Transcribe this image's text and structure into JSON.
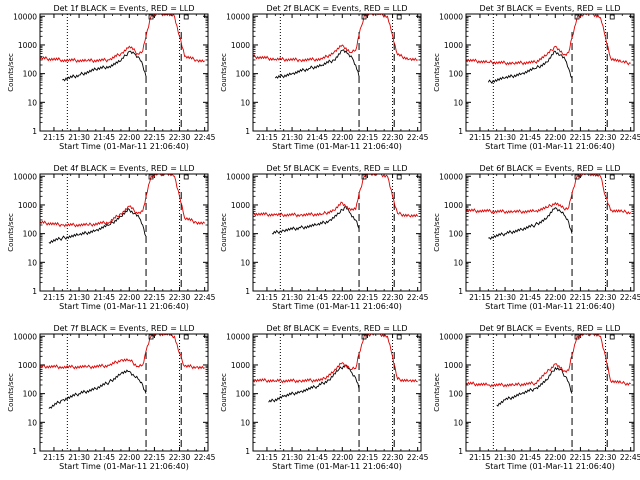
{
  "colors": {
    "events": "#000000",
    "lld": "#dd0000",
    "axis": "#000000",
    "background": "#ffffff"
  },
  "chart_data": [
    {
      "type": "line",
      "title": "Det 1f BLACK = Events, RED = LLD",
      "xlabel": "Start Time (01-Mar-11 21:06:40)",
      "ylabel": "Counts/sec",
      "yscale": "log",
      "ylim": [
        1,
        12000
      ],
      "xticklabels": [
        "21:15",
        "21:30",
        "21:45",
        "22:00",
        "22:15",
        "22:30",
        "22:45"
      ],
      "yticklabels": [
        "1",
        "10",
        "100",
        "1000",
        "10000"
      ],
      "event_markers": {
        "start": "21:23",
        "end": "22:30",
        "dashed": [
          "22:10",
          "22:31"
        ]
      },
      "series": [
        {
          "color": "black",
          "x": [
            "21:20",
            "21:30",
            "21:40",
            "21:48",
            "21:55",
            "22:00",
            "22:03",
            "22:06",
            "22:08",
            "22:10"
          ],
          "y": [
            60,
            90,
            140,
            180,
            280,
            600,
            500,
            350,
            200,
            80
          ]
        },
        {
          "color": "red",
          "x": [
            "21:06",
            "21:20",
            "21:35",
            "21:48",
            "21:55",
            "22:00",
            "22:05",
            "22:08",
            "22:10",
            "22:13",
            "22:17",
            "22:22",
            "22:27",
            "22:30",
            "22:33",
            "22:40",
            "22:45"
          ],
          "y": [
            350,
            300,
            280,
            300,
            500,
            900,
            500,
            600,
            2000,
            10000,
            12000,
            12000,
            10000,
            2000,
            400,
            300,
            280
          ]
        }
      ]
    },
    {
      "type": "line",
      "title": "Det 2f BLACK = Events, RED = LLD",
      "xlabel": "Start Time (01-Mar-11 21:06:40)",
      "ylabel": "Counts/sec",
      "yscale": "log",
      "ylim": [
        1,
        12000
      ],
      "xticklabels": [
        "21:15",
        "21:30",
        "21:45",
        "22:00",
        "22:15",
        "22:30",
        "22:45"
      ],
      "yticklabels": [
        "1",
        "10",
        "100",
        "1000",
        "10000"
      ],
      "event_markers": {
        "start": "21:23",
        "end": "22:30",
        "dashed": [
          "22:10",
          "22:31"
        ]
      },
      "series": [
        {
          "color": "black",
          "x": [
            "21:20",
            "21:30",
            "21:40",
            "21:48",
            "21:55",
            "22:00",
            "22:03",
            "22:06",
            "22:08",
            "22:10"
          ],
          "y": [
            70,
            100,
            150,
            200,
            300,
            650,
            500,
            350,
            200,
            80
          ]
        },
        {
          "color": "red",
          "x": [
            "21:06",
            "21:20",
            "21:35",
            "21:48",
            "21:55",
            "22:00",
            "22:05",
            "22:08",
            "22:10",
            "22:13",
            "22:17",
            "22:22",
            "22:27",
            "22:30",
            "22:33",
            "22:40",
            "22:45"
          ],
          "y": [
            400,
            320,
            300,
            320,
            550,
            1000,
            550,
            650,
            2200,
            10000,
            12000,
            12000,
            10000,
            2200,
            450,
            320,
            300
          ]
        }
      ]
    },
    {
      "type": "line",
      "title": "Det 3f BLACK = Events, RED = LLD",
      "xlabel": "Start Time (01-Mar-11 21:06:40)",
      "ylabel": "Counts/sec",
      "yscale": "log",
      "ylim": [
        1,
        12000
      ],
      "xticklabels": [
        "21:15",
        "21:30",
        "21:45",
        "22:00",
        "22:15",
        "22:30",
        "22:45"
      ],
      "yticklabels": [
        "1",
        "10",
        "100",
        "1000",
        "10000"
      ],
      "event_markers": {
        "start": "21:23",
        "end": "22:30",
        "dashed": [
          "22:10",
          "22:31"
        ]
      },
      "series": [
        {
          "color": "black",
          "x": [
            "21:20",
            "21:30",
            "21:40",
            "21:48",
            "21:55",
            "22:00",
            "22:03",
            "22:06",
            "22:08",
            "22:10"
          ],
          "y": [
            50,
            70,
            100,
            150,
            250,
            600,
            450,
            300,
            150,
            70
          ]
        },
        {
          "color": "red",
          "x": [
            "21:06",
            "21:20",
            "21:35",
            "21:48",
            "21:55",
            "22:00",
            "22:05",
            "22:08",
            "22:10",
            "22:13",
            "22:17",
            "22:22",
            "22:27",
            "22:30",
            "22:33",
            "22:40",
            "22:45"
          ],
          "y": [
            300,
            250,
            230,
            250,
            450,
            900,
            450,
            550,
            1800,
            9000,
            12000,
            12000,
            9000,
            1800,
            350,
            250,
            230
          ]
        }
      ]
    },
    {
      "type": "line",
      "title": "Det 4f BLACK = Events, RED = LLD",
      "xlabel": "Start Time (01-Mar-11 21:06:40)",
      "ylabel": "Counts/sec",
      "yscale": "log",
      "ylim": [
        1,
        12000
      ],
      "xticklabels": [
        "21:15",
        "21:30",
        "21:45",
        "22:00",
        "22:15",
        "22:30",
        "22:45"
      ],
      "yticklabels": [
        "1",
        "10",
        "100",
        "1000",
        "10000"
      ],
      "event_markers": {
        "start": "21:23",
        "end": "22:30",
        "dashed": [
          "22:10",
          "22:31"
        ]
      },
      "series": [
        {
          "color": "black",
          "x": [
            "21:12",
            "21:20",
            "21:30",
            "21:40",
            "21:48",
            "21:55",
            "22:00",
            "22:03",
            "22:06",
            "22:08",
            "22:10"
          ],
          "y": [
            50,
            70,
            90,
            130,
            200,
            400,
            700,
            500,
            350,
            200,
            80
          ]
        },
        {
          "color": "red",
          "x": [
            "21:06",
            "21:20",
            "21:35",
            "21:48",
            "21:55",
            "22:00",
            "22:05",
            "22:08",
            "22:10",
            "22:13",
            "22:17",
            "22:22",
            "22:27",
            "22:30",
            "22:33",
            "22:40",
            "22:45"
          ],
          "y": [
            250,
            200,
            200,
            250,
            500,
            900,
            500,
            600,
            2000,
            10000,
            12000,
            12000,
            10000,
            2000,
            350,
            250,
            230
          ]
        }
      ]
    },
    {
      "type": "line",
      "title": "Det 5f BLACK = Events, RED = LLD",
      "xlabel": "Start Time (01-Mar-11 21:06:40)",
      "ylabel": "Counts/sec",
      "yscale": "log",
      "ylim": [
        1,
        12000
      ],
      "xticklabels": [
        "21:15",
        "21:30",
        "21:45",
        "22:00",
        "22:15",
        "22:30",
        "22:45"
      ],
      "yticklabels": [
        "1",
        "10",
        "100",
        "1000",
        "10000"
      ],
      "event_markers": {
        "start": "21:23",
        "end": "22:30",
        "dashed": [
          "22:10",
          "22:31"
        ]
      },
      "series": [
        {
          "color": "black",
          "x": [
            "21:18",
            "21:25",
            "21:35",
            "21:45",
            "21:52",
            "21:58",
            "22:02",
            "22:05",
            "22:08",
            "22:10"
          ],
          "y": [
            100,
            130,
            160,
            200,
            280,
            500,
            900,
            500,
            300,
            150
          ]
        },
        {
          "color": "red",
          "x": [
            "21:06",
            "21:20",
            "21:35",
            "21:48",
            "21:55",
            "22:00",
            "22:05",
            "22:08",
            "22:10",
            "22:13",
            "22:17",
            "22:22",
            "22:27",
            "22:30",
            "22:33",
            "22:40",
            "22:45"
          ],
          "y": [
            500,
            450,
            450,
            480,
            650,
            1200,
            650,
            700,
            2500,
            10000,
            12000,
            12000,
            10000,
            2000,
            500,
            420,
            400
          ]
        }
      ]
    },
    {
      "type": "line",
      "title": "Det 6f BLACK = Events, RED = LLD",
      "xlabel": "Start Time (01-Mar-11 21:06:40)",
      "ylabel": "Counts/sec",
      "yscale": "log",
      "ylim": [
        1,
        12000
      ],
      "xticklabels": [
        "21:15",
        "21:30",
        "21:45",
        "22:00",
        "22:15",
        "22:30",
        "22:45"
      ],
      "yticklabels": [
        "1",
        "10",
        "100",
        "1000",
        "10000"
      ],
      "event_markers": {
        "start": "21:23",
        "end": "22:30",
        "dashed": [
          "22:10",
          "22:31"
        ]
      },
      "series": [
        {
          "color": "black",
          "x": [
            "21:20",
            "21:30",
            "21:40",
            "21:48",
            "21:55",
            "22:00",
            "22:03",
            "22:06",
            "22:08",
            "22:10"
          ],
          "y": [
            70,
            100,
            140,
            200,
            350,
            800,
            600,
            400,
            250,
            100
          ]
        },
        {
          "color": "red",
          "x": [
            "21:06",
            "21:20",
            "21:35",
            "21:48",
            "21:55",
            "22:00",
            "22:05",
            "22:08",
            "22:10",
            "22:13",
            "22:17",
            "22:22",
            "22:27",
            "22:30",
            "22:33",
            "22:40",
            "22:45"
          ],
          "y": [
            650,
            600,
            580,
            600,
            800,
            1200,
            750,
            800,
            2500,
            10000,
            12000,
            12000,
            10000,
            2000,
            650,
            580,
            550
          ]
        }
      ]
    },
    {
      "type": "line",
      "title": "Det 7f BLACK = Events, RED = LLD",
      "xlabel": "Start Time (01-Mar-11 21:06:40)",
      "ylabel": "Counts/sec",
      "yscale": "log",
      "ylim": [
        1,
        12000
      ],
      "xticklabels": [
        "21:15",
        "21:30",
        "21:45",
        "22:00",
        "22:15",
        "22:30",
        "22:45"
      ],
      "yticklabels": [
        "1",
        "10",
        "100",
        "1000",
        "10000"
      ],
      "event_markers": {
        "start": "21:23",
        "end": "22:30",
        "dashed": [
          "22:10",
          "22:31"
        ]
      },
      "series": [
        {
          "color": "black",
          "x": [
            "21:12",
            "21:20",
            "21:30",
            "21:40",
            "21:48",
            "21:55",
            "22:00",
            "22:03",
            "22:06",
            "22:08",
            "22:10"
          ],
          "y": [
            30,
            60,
            100,
            150,
            250,
            500,
            600,
            400,
            300,
            200,
            100
          ]
        },
        {
          "color": "red",
          "x": [
            "21:06",
            "21:20",
            "21:35",
            "21:48",
            "21:55",
            "22:00",
            "22:05",
            "22:08",
            "22:10",
            "22:13",
            "22:17",
            "22:22",
            "22:27",
            "22:30",
            "22:33",
            "22:40",
            "22:45"
          ],
          "y": [
            900,
            850,
            850,
            950,
            1500,
            1500,
            900,
            1000,
            3000,
            10000,
            12000,
            12000,
            10000,
            2500,
            900,
            850,
            800
          ]
        }
      ]
    },
    {
      "type": "line",
      "title": "Det 8f BLACK = Events, RED = LLD",
      "xlabel": "Start Time (01-Mar-11 21:06:40)",
      "ylabel": "Counts/sec",
      "yscale": "log",
      "ylim": [
        1,
        12000
      ],
      "xticklabels": [
        "21:15",
        "21:30",
        "21:45",
        "22:00",
        "22:15",
        "22:30",
        "22:45"
      ],
      "yticklabels": [
        "1",
        "10",
        "100",
        "1000",
        "10000"
      ],
      "event_markers": {
        "start": "21:23",
        "end": "22:30",
        "dashed": [
          "22:10",
          "22:31"
        ]
      },
      "series": [
        {
          "color": "black",
          "x": [
            "21:16",
            "21:25",
            "21:35",
            "21:45",
            "21:52",
            "21:58",
            "22:02",
            "22:05",
            "22:08",
            "22:10"
          ],
          "y": [
            50,
            80,
            120,
            180,
            300,
            700,
            1000,
            600,
            350,
            150
          ]
        },
        {
          "color": "red",
          "x": [
            "21:06",
            "21:20",
            "21:35",
            "21:48",
            "21:55",
            "22:00",
            "22:05",
            "22:08",
            "22:10",
            "22:13",
            "22:17",
            "22:22",
            "22:27",
            "22:30",
            "22:33",
            "22:40",
            "22:45"
          ],
          "y": [
            300,
            280,
            280,
            300,
            600,
            1200,
            700,
            750,
            2500,
            10000,
            12000,
            12000,
            10000,
            2000,
            320,
            280,
            260
          ]
        }
      ]
    },
    {
      "type": "line",
      "title": "Det 9f BLACK = Events, RED = LLD",
      "xlabel": "Start Time (01-Mar-11 21:06:40)",
      "ylabel": "Counts/sec",
      "yscale": "log",
      "ylim": [
        1,
        12000
      ],
      "xticklabels": [
        "21:15",
        "21:30",
        "21:45",
        "22:00",
        "22:15",
        "22:30",
        "22:45"
      ],
      "yticklabels": [
        "1",
        "10",
        "100",
        "1000",
        "10000"
      ],
      "event_markers": {
        "start": "21:23",
        "end": "22:30",
        "dashed": [
          "22:10",
          "22:31"
        ]
      },
      "series": [
        {
          "color": "black",
          "x": [
            "21:25",
            "21:30",
            "21:40",
            "21:48",
            "21:55",
            "22:00",
            "22:03",
            "22:06",
            "22:08",
            "22:10"
          ],
          "y": [
            40,
            60,
            100,
            150,
            300,
            800,
            700,
            400,
            250,
            100
          ]
        },
        {
          "color": "red",
          "x": [
            "21:06",
            "21:20",
            "21:35",
            "21:48",
            "21:55",
            "22:00",
            "22:05",
            "22:08",
            "22:10",
            "22:13",
            "22:17",
            "22:22",
            "22:27",
            "22:30",
            "22:33",
            "22:40",
            "22:45"
          ],
          "y": [
            230,
            200,
            200,
            230,
            550,
            1100,
            600,
            650,
            2200,
            10000,
            12000,
            12000,
            10000,
            2000,
            280,
            230,
            220
          ]
        }
      ]
    }
  ]
}
